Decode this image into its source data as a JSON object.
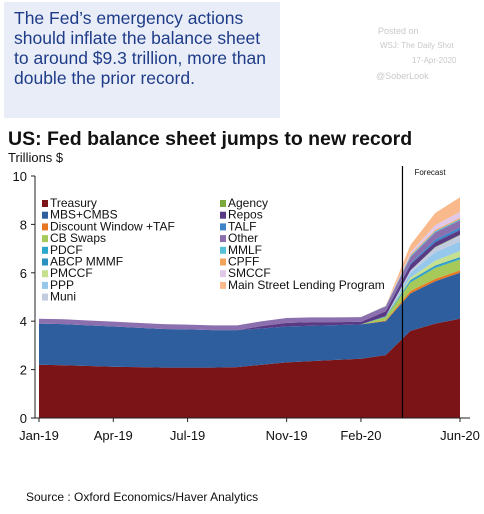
{
  "callout": {
    "text": "The Fed’s emergency actions should inflate the balance sheet to around $9.3 trillion, more than double the prior record."
  },
  "watermark": {
    "posted": "Posted on",
    "source": "WSJ: The Daily Shot",
    "date": "17-Apr-2020",
    "handle": "@SoberLook"
  },
  "source_note": "Source : Oxford Economics/Haver Analytics",
  "chart_data": {
    "type": "area",
    "stacked": true,
    "title": "US: Fed balance sheet jumps to new record",
    "ylabel": "Trillions $",
    "ylim": [
      0,
      10
    ],
    "yticks": [
      0,
      2,
      4,
      6,
      8,
      10
    ],
    "xticks": [
      "Jan-19",
      "Apr-19",
      "Jul-19",
      "Nov-19",
      "Feb-20",
      "Jun-20"
    ],
    "forecast_label": "Forecast",
    "forecast_start": "Apr-20",
    "legend_placement": "top-left",
    "x": [
      "Jan-19",
      "Feb-19",
      "Mar-19",
      "Apr-19",
      "May-19",
      "Jun-19",
      "Jul-19",
      "Aug-19",
      "Sep-19",
      "Oct-19",
      "Nov-19",
      "Dec-19",
      "Jan-20",
      "Feb-20",
      "Mar-20",
      "Apr-20",
      "May-20",
      "Jun-20"
    ],
    "series": [
      {
        "name": "Treasury",
        "color": "#7b1416",
        "values": [
          2.2,
          2.18,
          2.15,
          2.12,
          2.1,
          2.08,
          2.08,
          2.08,
          2.1,
          2.2,
          2.3,
          2.35,
          2.4,
          2.45,
          2.6,
          3.6,
          3.9,
          4.1
        ]
      },
      {
        "name": "MBS+CMBS",
        "color": "#2e5e9e",
        "values": [
          1.7,
          1.7,
          1.68,
          1.66,
          1.63,
          1.6,
          1.58,
          1.55,
          1.53,
          1.5,
          1.48,
          1.46,
          1.44,
          1.42,
          1.4,
          1.55,
          1.75,
          1.9
        ]
      },
      {
        "name": "Discount Window +TAF",
        "color": "#e87722",
        "values": [
          0,
          0,
          0,
          0,
          0,
          0,
          0,
          0,
          0,
          0,
          0,
          0,
          0,
          0,
          0.03,
          0.1,
          0.1,
          0.1
        ]
      },
      {
        "name": "CB Swaps",
        "color": "#a7c95a",
        "values": [
          0,
          0,
          0,
          0,
          0,
          0,
          0,
          0,
          0,
          0,
          0,
          0,
          0,
          0,
          0.15,
          0.35,
          0.45,
          0.45
        ]
      },
      {
        "name": "PDCF",
        "color": "#2aa7c9",
        "values": [
          0,
          0,
          0,
          0,
          0,
          0,
          0,
          0,
          0,
          0,
          0,
          0,
          0,
          0,
          0.02,
          0.05,
          0.05,
          0.05
        ]
      },
      {
        "name": "ABCP MMMF",
        "color": "#2b8fbf",
        "values": [
          0,
          0,
          0,
          0,
          0,
          0,
          0,
          0,
          0,
          0,
          0,
          0,
          0,
          0,
          0.01,
          0.05,
          0.05,
          0.05
        ]
      },
      {
        "name": "PMCCF",
        "color": "#c5e08f",
        "values": [
          0,
          0,
          0,
          0,
          0,
          0,
          0,
          0,
          0,
          0,
          0,
          0,
          0,
          0,
          0,
          0.1,
          0.2,
          0.25
        ]
      },
      {
        "name": "PPP",
        "color": "#95c8ea",
        "values": [
          0,
          0,
          0,
          0,
          0,
          0,
          0,
          0,
          0,
          0,
          0,
          0,
          0,
          0,
          0,
          0.2,
          0.35,
          0.4
        ]
      },
      {
        "name": "Muni",
        "color": "#c3cbe0",
        "values": [
          0,
          0,
          0,
          0,
          0,
          0,
          0,
          0,
          0,
          0,
          0,
          0,
          0,
          0,
          0,
          0.1,
          0.2,
          0.25
        ]
      },
      {
        "name": "Agency",
        "color": "#7aa83a",
        "values": [
          0,
          0,
          0,
          0,
          0,
          0,
          0,
          0,
          0,
          0,
          0,
          0,
          0,
          0,
          0,
          0,
          0.02,
          0.02
        ]
      },
      {
        "name": "Repos",
        "color": "#5b3a85",
        "values": [
          0,
          0,
          0,
          0,
          0,
          0,
          0,
          0,
          0,
          0.1,
          0.15,
          0.15,
          0.12,
          0.1,
          0.2,
          0.25,
          0.2,
          0.2
        ]
      },
      {
        "name": "TALF",
        "color": "#3e84c6",
        "values": [
          0,
          0,
          0,
          0,
          0,
          0,
          0,
          0,
          0,
          0,
          0,
          0,
          0,
          0,
          0,
          0.05,
          0.1,
          0.1
        ]
      },
      {
        "name": "Other",
        "color": "#8b6fae",
        "values": [
          0.2,
          0.2,
          0.2,
          0.2,
          0.2,
          0.2,
          0.2,
          0.2,
          0.2,
          0.2,
          0.2,
          0.2,
          0.2,
          0.2,
          0.2,
          0.25,
          0.3,
          0.3
        ]
      },
      {
        "name": "MMLF",
        "color": "#55c0d8",
        "values": [
          0,
          0,
          0,
          0,
          0,
          0,
          0,
          0,
          0,
          0,
          0,
          0,
          0,
          0,
          0.02,
          0.05,
          0.05,
          0.05
        ]
      },
      {
        "name": "CPFF",
        "color": "#f2a35c",
        "values": [
          0,
          0,
          0,
          0,
          0,
          0,
          0,
          0,
          0,
          0,
          0,
          0,
          0,
          0,
          0.01,
          0.05,
          0.05,
          0.05
        ]
      },
      {
        "name": "SMCCF",
        "color": "#e2c8e8",
        "values": [
          0,
          0,
          0,
          0,
          0,
          0,
          0,
          0,
          0,
          0,
          0,
          0,
          0,
          0,
          0,
          0.1,
          0.2,
          0.25
        ]
      },
      {
        "name": "Main Street Lending Program",
        "color": "#f9b98a",
        "values": [
          0,
          0,
          0,
          0,
          0,
          0,
          0,
          0,
          0,
          0,
          0,
          0,
          0,
          0,
          0,
          0.3,
          0.5,
          0.6
        ]
      }
    ]
  }
}
